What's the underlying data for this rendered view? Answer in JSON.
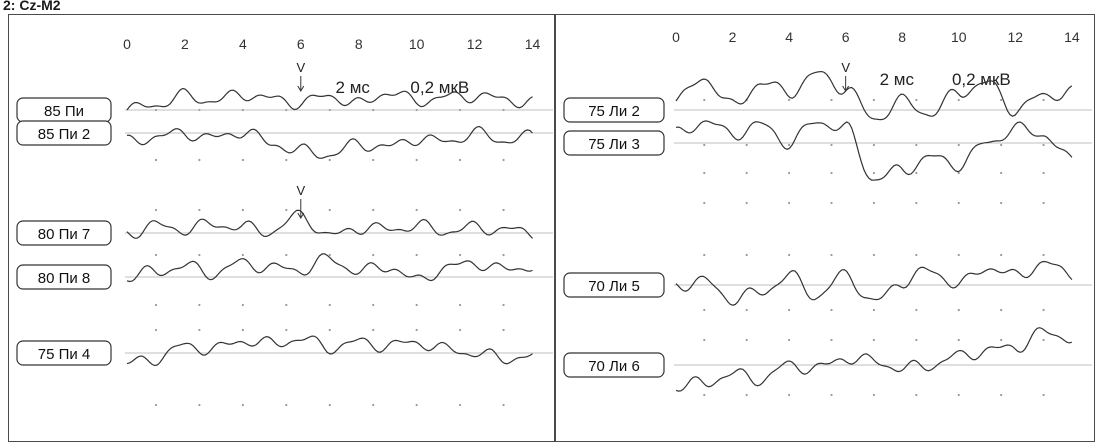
{
  "header": {
    "channel": "2: Cz-M2"
  },
  "chart_data": [
    {
      "type": "line",
      "panel": "left",
      "x_ticks": [
        "0",
        "2",
        "4",
        "6",
        "8",
        "10",
        "12",
        "14"
      ],
      "xlim": [
        0,
        14.5
      ],
      "marker": {
        "x": 6,
        "label": "V"
      },
      "scale": {
        "time": "2 мс",
        "amplitude": "0,2 мкВ"
      },
      "series": [
        {
          "name": "85 Пи",
          "x": [
            0,
            1,
            2,
            3,
            4,
            5,
            6,
            7,
            8,
            9,
            10,
            11,
            12,
            13,
            14
          ],
          "y": [
            0.0,
            0.03,
            0.08,
            0.05,
            0.09,
            0.06,
            0.04,
            0.08,
            0.03,
            0.1,
            0.05,
            0.07,
            0.08,
            0.06,
            0.04
          ]
        },
        {
          "name": "85 Пи 2",
          "x": [
            0,
            1,
            2,
            3,
            4,
            5,
            6,
            7,
            8,
            9,
            10,
            11,
            12,
            13,
            14
          ],
          "y": [
            -0.05,
            -0.02,
            0.0,
            -0.03,
            0.01,
            -0.06,
            -0.1,
            -0.12,
            -0.06,
            -0.08,
            -0.03,
            -0.05,
            0.0,
            -0.04,
            -0.02
          ]
        },
        {
          "name": "80 Пи 7",
          "x": [
            0,
            1,
            2,
            3,
            4,
            5,
            6,
            7,
            8,
            9,
            10,
            11,
            12,
            13,
            14
          ],
          "y": [
            0.0,
            0.04,
            0.02,
            0.05,
            0.03,
            0.01,
            0.1,
            -0.02,
            0.03,
            0.02,
            0.04,
            0.01,
            0.03,
            0.02,
            0.0
          ]
        },
        {
          "name": "80 Пи 8",
          "x": [
            0,
            1,
            2,
            3,
            4,
            5,
            6,
            7,
            8,
            9,
            10,
            11,
            12,
            13,
            14
          ],
          "y": [
            0.0,
            0.03,
            0.06,
            0.02,
            0.08,
            0.05,
            0.04,
            0.1,
            0.03,
            0.06,
            -0.02,
            0.05,
            0.08,
            0.04,
            0.06
          ]
        },
        {
          "name": "75 Пи 4",
          "x": [
            0,
            1,
            2,
            3,
            4,
            5,
            6,
            7,
            8,
            9,
            10,
            11,
            12,
            13,
            14
          ],
          "y": [
            -0.06,
            -0.03,
            0.04,
            0.02,
            0.07,
            0.05,
            0.08,
            0.03,
            0.06,
            0.04,
            0.06,
            0.02,
            0.0,
            -0.03,
            -0.02
          ]
        }
      ]
    },
    {
      "type": "line",
      "panel": "right",
      "x_ticks": [
        "0",
        "2",
        "4",
        "6",
        "8",
        "10",
        "12",
        "14"
      ],
      "xlim": [
        0,
        14.5
      ],
      "marker": {
        "x": 6,
        "label": "V"
      },
      "scale": {
        "time": "2 мс",
        "amplitude": "0,2 мкВ"
      },
      "series": [
        {
          "name": "75 Ли 2",
          "x": [
            0,
            1,
            2,
            3,
            4,
            5,
            6,
            7,
            8,
            9,
            10,
            11,
            12,
            13,
            14
          ],
          "y": [
            0.05,
            0.18,
            0.02,
            0.15,
            0.1,
            0.2,
            0.12,
            -0.05,
            0.05,
            -0.02,
            0.1,
            0.15,
            0.0,
            0.08,
            0.1
          ]
        },
        {
          "name": "75 Ли 3",
          "x": [
            0,
            1,
            2,
            3,
            4,
            5,
            6,
            7,
            8,
            9,
            10,
            11,
            12,
            13,
            14
          ],
          "y": [
            0.05,
            0.12,
            0.05,
            0.1,
            0.0,
            0.12,
            0.08,
            -0.2,
            -0.15,
            -0.08,
            -0.12,
            0.0,
            0.08,
            0.05,
            -0.1
          ]
        },
        {
          "name": "70 Ли 5",
          "x": [
            0,
            1,
            2,
            3,
            4,
            5,
            6,
            7,
            8,
            9,
            10,
            11,
            12,
            13,
            14
          ],
          "y": [
            0.0,
            0.02,
            -0.08,
            -0.04,
            0.05,
            -0.06,
            0.06,
            -0.1,
            0.02,
            0.08,
            0.0,
            0.1,
            0.05,
            0.12,
            0.06
          ]
        },
        {
          "name": "70 Ли 6",
          "x": [
            0,
            1,
            2,
            3,
            4,
            5,
            6,
            7,
            8,
            9,
            10,
            11,
            12,
            13,
            14
          ],
          "y": [
            -0.12,
            -0.1,
            -0.05,
            -0.08,
            0.0,
            -0.02,
            0.04,
            0.02,
            -0.02,
            0.0,
            0.05,
            0.08,
            0.1,
            0.18,
            0.15
          ]
        }
      ]
    }
  ]
}
